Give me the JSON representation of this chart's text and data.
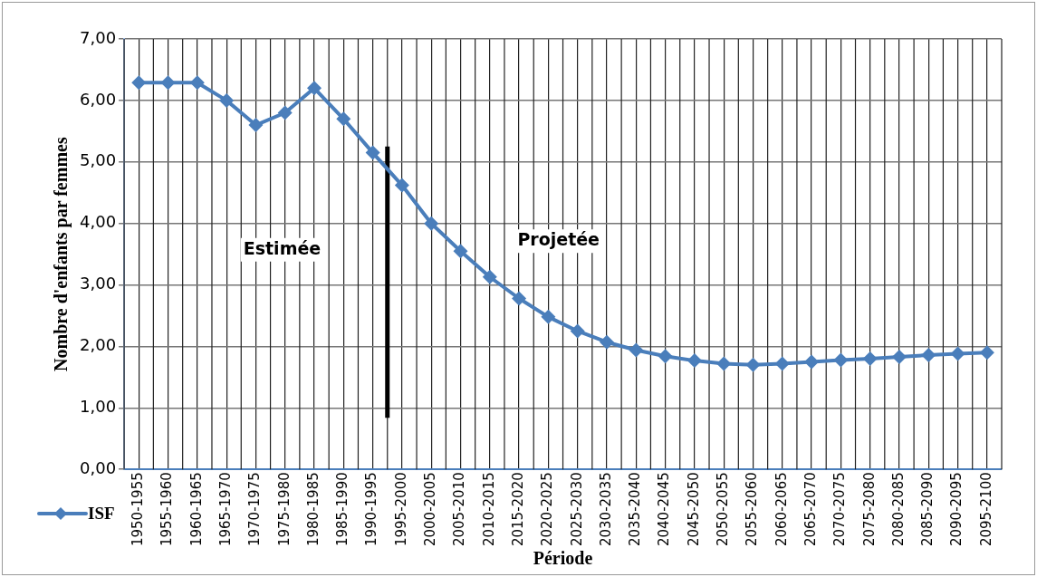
{
  "chart_data": {
    "type": "line",
    "xlabel": "Période",
    "ylabel": "Nombre d'enfants par femmes",
    "categories": [
      "1950-1955",
      "1955-1960",
      "1960-1965",
      "1965-1970",
      "1970-1975",
      "1975-1980",
      "1980-1985",
      "1985-1990",
      "1990-1995",
      "1995-2000",
      "2000-2005",
      "2005-2010",
      "2010-2015",
      "2015-2020",
      "2020-2025",
      "2025-2030",
      "2030-2035",
      "2035-2040",
      "2040-2045",
      "2045-2050",
      "2050-2055",
      "2055-2060",
      "2060-2065",
      "2065-2070",
      "2070-2075",
      "2075-2080",
      "2080-2085",
      "2085-2090",
      "2090-2095",
      "2095-2100"
    ],
    "series": [
      {
        "name": "ISF",
        "color": "#4a7ebb",
        "values": [
          6.29,
          6.29,
          6.29,
          6.0,
          5.6,
          5.8,
          6.2,
          5.7,
          5.15,
          4.62,
          4.0,
          3.55,
          3.13,
          2.78,
          2.48,
          2.25,
          2.07,
          1.94,
          1.84,
          1.77,
          1.72,
          1.7,
          1.72,
          1.75,
          1.78,
          1.8,
          1.83,
          1.86,
          1.88,
          1.9
        ]
      }
    ],
    "ylim": [
      0,
      7
    ],
    "yticks": [
      {
        "value": 0,
        "label": "0,00"
      },
      {
        "value": 1,
        "label": "1,00"
      },
      {
        "value": 2,
        "label": "2,00"
      },
      {
        "value": 3,
        "label": "3,00"
      },
      {
        "value": 4,
        "label": "4,00"
      },
      {
        "value": 5,
        "label": "5,00"
      },
      {
        "value": 6,
        "label": "6,00"
      },
      {
        "value": 7,
        "label": "7,00"
      }
    ],
    "ref_lines": [
      {
        "axis": "x",
        "value": "1995-2000",
        "color": "#000000"
      }
    ],
    "annotations": [
      "Estimée",
      "Projetée"
    ],
    "grid": true,
    "legend": "bottom left",
    "marker": "diamond",
    "line_style": "solid"
  }
}
